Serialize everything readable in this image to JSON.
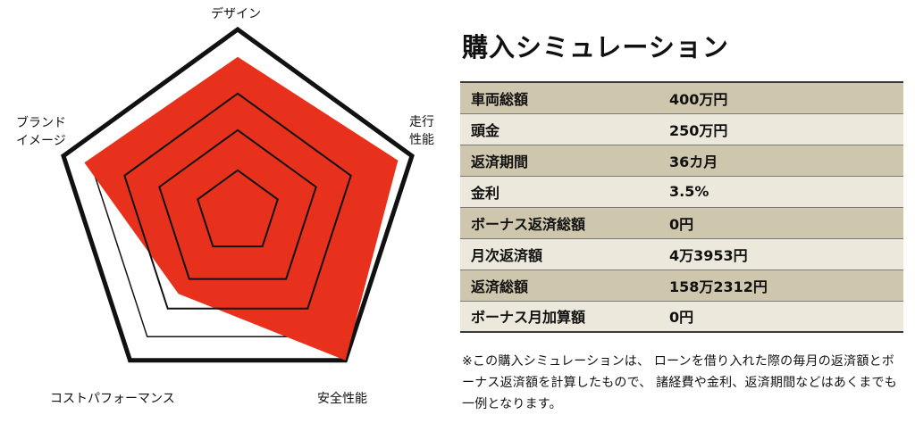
{
  "radar": {
    "axes": [
      {
        "label_lines": [
          "デザイン"
        ],
        "value": 0.85
      },
      {
        "label_lines": [
          "走行",
          "性能"
        ],
        "value": 0.92
      },
      {
        "label_lines": [
          "安全性能"
        ],
        "value": 1.0
      },
      {
        "label_lines": [
          "コストパフォーマンス"
        ],
        "value": 0.55
      },
      {
        "label_lines": [
          "ブランド",
          "イメージ"
        ],
        "value": 0.88
      }
    ],
    "rings": 4,
    "fill_color": "#e8311c",
    "ring_color": "#111111"
  },
  "simulation": {
    "title": "購入シミュレーション",
    "rows": [
      {
        "label": "車両総額",
        "value": "400万円"
      },
      {
        "label": "頭金",
        "value": "250万円"
      },
      {
        "label": "返済期間",
        "value": "36カ月"
      },
      {
        "label": "金利",
        "value": "3.5%"
      },
      {
        "label": "ボーナス返済総額",
        "value": "0円"
      },
      {
        "label": "月次返済額",
        "value": "4万3953円"
      },
      {
        "label": "返済総額",
        "value": "158万2312円"
      },
      {
        "label": "ボーナス月加算額",
        "value": "0円"
      }
    ],
    "note": "※この購入シミュレーションは、 ローンを借り入れた際の毎月の返済額とボーナス返済額を計算したもので、 諸経費や金利、返済期間などはあくまでも一例となります。",
    "row_colors": [
      "#cfc7ad",
      "#ece8dc"
    ]
  }
}
